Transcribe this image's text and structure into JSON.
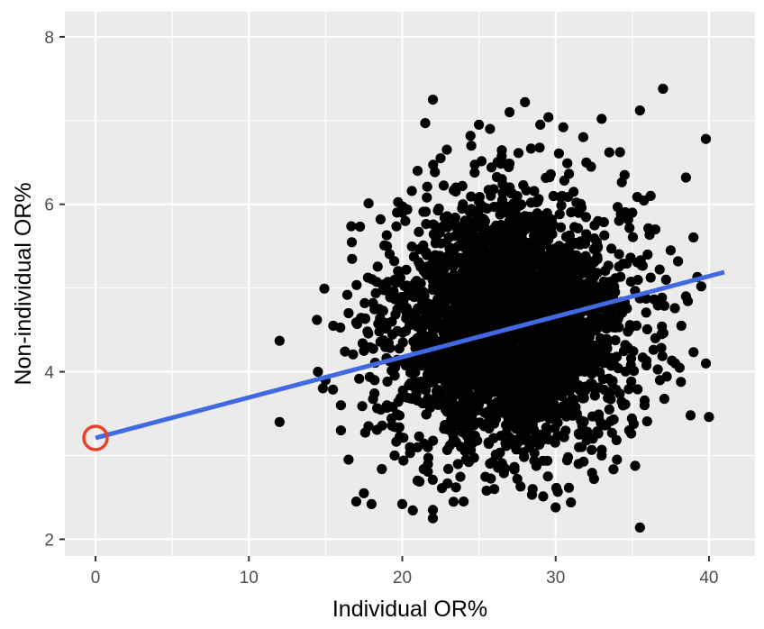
{
  "chart_data": {
    "type": "scatter",
    "title": "",
    "xlabel": "Individual OR%",
    "ylabel": "Non-individual OR%",
    "xlim": [
      -2,
      43
    ],
    "ylim": [
      1.8,
      8.3
    ],
    "x_ticks": [
      0,
      10,
      20,
      30,
      40
    ],
    "y_ticks": [
      2,
      4,
      6,
      8
    ],
    "x_tick_labels": [
      "0",
      "10",
      "20",
      "30",
      "40"
    ],
    "y_tick_labels": [
      "2",
      "4",
      "6",
      "8"
    ],
    "grid": true,
    "background": "#ebebeb",
    "point_color": "#000000",
    "regression_line": {
      "color": "#4169e1",
      "x": [
        0,
        41
      ],
      "y": [
        3.21,
        5.19
      ]
    },
    "highlight": {
      "type": "circle",
      "color": "#e8412b",
      "x": 0,
      "y": 3.21
    },
    "cluster": {
      "approx_count": 3000,
      "center_x": 27,
      "center_y": 4.55,
      "sd_x": 3.8,
      "sd_y": 0.75,
      "note": "dense point cloud, approximate"
    },
    "outliers": [
      [
        12,
        4.37
      ],
      [
        12,
        3.4
      ],
      [
        14.5,
        4.0
      ],
      [
        15,
        3.9
      ],
      [
        15.5,
        4.55
      ],
      [
        16,
        3.3
      ],
      [
        16.5,
        2.95
      ],
      [
        17,
        2.45
      ],
      [
        17.5,
        2.55
      ],
      [
        18,
        2.42
      ],
      [
        20,
        2.42
      ],
      [
        22,
        2.25
      ],
      [
        22,
        2.35
      ],
      [
        24,
        2.45
      ],
      [
        26,
        2.6
      ],
      [
        30,
        2.38
      ],
      [
        31,
        2.44
      ],
      [
        35.5,
        2.14
      ],
      [
        22,
        7.25
      ],
      [
        21.5,
        6.97
      ],
      [
        28,
        7.22
      ],
      [
        37,
        7.38
      ],
      [
        35.5,
        7.12
      ],
      [
        39.8,
        6.78
      ],
      [
        38.5,
        6.32
      ],
      [
        39.5,
        5.02
      ],
      [
        39.8,
        4.1
      ],
      [
        40,
        3.46
      ],
      [
        38.8,
        3.48
      ],
      [
        34.5,
        6.35
      ],
      [
        36.5,
        5.7
      ],
      [
        37.5,
        5.45
      ],
      [
        38.2,
        4.55
      ],
      [
        36.8,
        3.9
      ],
      [
        33.5,
        6.62
      ],
      [
        21,
        6.4
      ],
      [
        19,
        5.5
      ],
      [
        18.5,
        4.75
      ],
      [
        17.5,
        4.25
      ],
      [
        16.5,
        4.7
      ],
      [
        16,
        3.6
      ],
      [
        19.5,
        3.0
      ],
      [
        33,
        7.02
      ],
      [
        30.5,
        6.92
      ],
      [
        29,
        6.95
      ],
      [
        27,
        7.1
      ],
      [
        25,
        6.95
      ],
      [
        24.5,
        6.7
      ],
      [
        32,
        6.5
      ],
      [
        35,
        5.9
      ],
      [
        36,
        5.4
      ],
      [
        37.2,
        5.1
      ],
      [
        36.5,
        4.4
      ],
      [
        35.8,
        3.6
      ],
      [
        34.8,
        3.3
      ],
      [
        34,
        2.95
      ],
      [
        33,
        3.0
      ],
      [
        32.5,
        2.72
      ],
      [
        31.5,
        2.9
      ],
      [
        29.5,
        2.75
      ],
      [
        28.5,
        2.6
      ],
      [
        27.5,
        2.72
      ],
      [
        25.5,
        2.58
      ],
      [
        23.5,
        2.62
      ],
      [
        23,
        2.84
      ],
      [
        21,
        2.7
      ],
      [
        20.5,
        3.1
      ],
      [
        19,
        3.6
      ],
      [
        18.2,
        3.9
      ],
      [
        17.8,
        3.35
      ],
      [
        22.5,
        6.55
      ],
      [
        23.5,
        6.2
      ],
      [
        36.2,
        6.1
      ],
      [
        33.5,
        3.55
      ],
      [
        37.8,
        4.1
      ],
      [
        38.5,
        4.9
      ],
      [
        19.5,
        5.1
      ],
      [
        20.2,
        5.8
      ]
    ]
  }
}
